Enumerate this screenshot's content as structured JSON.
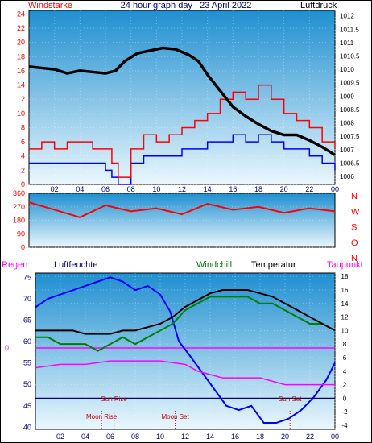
{
  "chart_data": [
    {
      "type": "line",
      "title": "24 hour graph day : 23 April 2022",
      "left_label": "Windstarke",
      "right_label": "Luftdruck",
      "x_ticks": [
        "02",
        "04",
        "06",
        "08",
        "10",
        "12",
        "14",
        "16",
        "18",
        "20",
        "22",
        "00"
      ],
      "x_range_hours": [
        0,
        24
      ],
      "left_axis": {
        "ticks": [
          0,
          2,
          4,
          6,
          8,
          10,
          12,
          14,
          16,
          18,
          20,
          22,
          24
        ],
        "ylim": [
          0,
          24.5
        ],
        "color": "#ff0000"
      },
      "right_axis": {
        "ticks": [
          "1006",
          "1006.5",
          "1007",
          "1007.5",
          "1008",
          "1008.5",
          "1009",
          "1009.5",
          "1010",
          "1010.5",
          "1011",
          "1011.5",
          "1012"
        ],
        "ylim": [
          1005.7,
          1012.2
        ],
        "color": "#000000"
      },
      "series": [
        {
          "color": "#000000",
          "values": [
            [
              0,
              1010.1
            ],
            [
              1,
              1010.05
            ],
            [
              2,
              1010.0
            ],
            [
              3,
              1009.85
            ],
            [
              4,
              1009.95
            ],
            [
              5,
              1009.9
            ],
            [
              6,
              1009.85
            ],
            [
              6.8,
              1009.95
            ],
            [
              7.5,
              1010.3
            ],
            [
              8.5,
              1010.6
            ],
            [
              9.5,
              1010.7
            ],
            [
              10.5,
              1010.8
            ],
            [
              11.5,
              1010.75
            ],
            [
              12.5,
              1010.55
            ],
            [
              13.3,
              1010.3
            ],
            [
              14,
              1009.8
            ],
            [
              15,
              1009.2
            ],
            [
              16,
              1008.6
            ],
            [
              17,
              1008.25
            ],
            [
              18,
              1007.95
            ],
            [
              19,
              1007.7
            ],
            [
              20,
              1007.55
            ],
            [
              21,
              1007.55
            ],
            [
              22,
              1007.35
            ],
            [
              23,
              1007.1
            ],
            [
              24,
              1006.8
            ]
          ]
        },
        {
          "color": "#ff0000",
          "values": [
            [
              0,
              5
            ],
            [
              1,
              6
            ],
            [
              2,
              5
            ],
            [
              3,
              6
            ],
            [
              4,
              6
            ],
            [
              5,
              5
            ],
            [
              6,
              5
            ],
            [
              6.5,
              3
            ],
            [
              7,
              1
            ],
            [
              7.6,
              1
            ],
            [
              8,
              5
            ],
            [
              9,
              7
            ],
            [
              10,
              6
            ],
            [
              11,
              7
            ],
            [
              12,
              8
            ],
            [
              13,
              9
            ],
            [
              14,
              10
            ],
            [
              15,
              12
            ],
            [
              16,
              13
            ],
            [
              17,
              12
            ],
            [
              18,
              14
            ],
            [
              19,
              12
            ],
            [
              20,
              10
            ],
            [
              21,
              9
            ],
            [
              22,
              8
            ],
            [
              23,
              6
            ],
            [
              24,
              5
            ]
          ]
        },
        {
          "color": "#0000ff",
          "values": [
            [
              0,
              3
            ],
            [
              1,
              3
            ],
            [
              2,
              3
            ],
            [
              3,
              3
            ],
            [
              4,
              3
            ],
            [
              5,
              3
            ],
            [
              6,
              2
            ],
            [
              6.5,
              1
            ],
            [
              7,
              0
            ],
            [
              7.6,
              0
            ],
            [
              8,
              3
            ],
            [
              9,
              4
            ],
            [
              10,
              4
            ],
            [
              11,
              4
            ],
            [
              12,
              5
            ],
            [
              13,
              5
            ],
            [
              14,
              6
            ],
            [
              15,
              6
            ],
            [
              16,
              7
            ],
            [
              17,
              6
            ],
            [
              18,
              7
            ],
            [
              19,
              6
            ],
            [
              20,
              5
            ],
            [
              21,
              5
            ],
            [
              22,
              4
            ],
            [
              23,
              3
            ],
            [
              24,
              2
            ]
          ]
        }
      ]
    },
    {
      "type": "scatter",
      "left_axis": {
        "ticks": [
          0,
          90,
          180,
          270,
          360
        ],
        "ylim": [
          0,
          360
        ],
        "color": "#ff0000"
      },
      "right_labels": [
        "N",
        "W",
        "S",
        "O",
        "N"
      ],
      "x_range_hours": [
        0,
        24
      ],
      "series": [
        {
          "color": "#ff0000",
          "values": [
            [
              0,
              300
            ],
            [
              2,
              250
            ],
            [
              4,
              200
            ],
            [
              6,
              280
            ],
            [
              8,
              240
            ],
            [
              10,
              260
            ],
            [
              12,
              220
            ],
            [
              14,
              290
            ],
            [
              16,
              250
            ],
            [
              18,
              270
            ],
            [
              20,
              230
            ],
            [
              22,
              260
            ],
            [
              24,
              240
            ]
          ]
        }
      ]
    },
    {
      "type": "line",
      "legend": [
        "Regen",
        "Luftfeuchte",
        "Windchill",
        "Temperatur",
        "Taupunkt"
      ],
      "legend_colors": [
        "#ff00ff",
        "#000080",
        "#008000",
        "#000000",
        "#ff00ff"
      ],
      "x_ticks": [
        "02",
        "04",
        "06",
        "08",
        "10",
        "12",
        "14",
        "16",
        "18",
        "20",
        "22",
        "00"
      ],
      "x_range_hours": [
        0,
        24
      ],
      "left_axis": {
        "ticks": [
          40,
          45,
          50,
          55,
          60,
          65,
          70,
          75
        ],
        "ylim": [
          39.5,
          76
        ],
        "color": "#000080"
      },
      "right_axis": {
        "ticks": [
          -4,
          -2,
          0,
          2,
          4,
          6,
          8,
          10,
          12,
          14,
          16,
          18
        ],
        "ylim": [
          -4.6,
          18.5
        ],
        "color": "#000000"
      },
      "rain_label": "0",
      "annotations": {
        "sun_rise": "Sun Rise",
        "sun_set": "Sun Set",
        "moon_rise": "Moon Rise",
        "moon_set": "Moon Set"
      },
      "annotation_hours": {
        "sun_rise": 6.3,
        "sun_set": 20.4,
        "moon_rise": 5.3,
        "moon_set": 11.2
      },
      "series": [
        {
          "name": "Luftfeuchte",
          "color": "#0000ff",
          "values": [
            [
              0,
              68
            ],
            [
              1,
              70
            ],
            [
              2,
              71
            ],
            [
              3,
              72
            ],
            [
              4,
              73
            ],
            [
              5,
              74
            ],
            [
              6,
              75
            ],
            [
              7,
              74
            ],
            [
              8,
              72
            ],
            [
              9,
              73
            ],
            [
              10,
              71
            ],
            [
              10.8,
              67
            ],
            [
              11.5,
              60
            ],
            [
              12.3,
              57
            ],
            [
              13.3,
              53
            ],
            [
              14.3,
              49
            ],
            [
              15.3,
              45
            ],
            [
              16.3,
              44
            ],
            [
              17.3,
              45
            ],
            [
              18.3,
              41
            ],
            [
              19.3,
              41
            ],
            [
              20.3,
              42
            ],
            [
              21.3,
              44
            ],
            [
              22.3,
              47
            ],
            [
              23.3,
              51
            ],
            [
              24,
              55
            ]
          ]
        },
        {
          "name": "Windchill",
          "color": "#008000",
          "values": [
            [
              0,
              9
            ],
            [
              1,
              9
            ],
            [
              2,
              8
            ],
            [
              3,
              8
            ],
            [
              4,
              8
            ],
            [
              5,
              7
            ],
            [
              6,
              8
            ],
            [
              7,
              9
            ],
            [
              8,
              8
            ],
            [
              9,
              9
            ],
            [
              10,
              10
            ],
            [
              11,
              11
            ],
            [
              12,
              13
            ],
            [
              13,
              14
            ],
            [
              14,
              15
            ],
            [
              15,
              15
            ],
            [
              16,
              15
            ],
            [
              17,
              15
            ],
            [
              18,
              14
            ],
            [
              19,
              14
            ],
            [
              20,
              13
            ],
            [
              21,
              12
            ],
            [
              22,
              11
            ],
            [
              23,
              11
            ],
            [
              24,
              10
            ]
          ]
        },
        {
          "name": "Temperatur",
          "color": "#000000",
          "values": [
            [
              0,
              10
            ],
            [
              1,
              10
            ],
            [
              2,
              10
            ],
            [
              3,
              10
            ],
            [
              4,
              9.5
            ],
            [
              5,
              9.5
            ],
            [
              6,
              9.5
            ],
            [
              7,
              10
            ],
            [
              8,
              10
            ],
            [
              9,
              10.5
            ],
            [
              10,
              11
            ],
            [
              11,
              12
            ],
            [
              12,
              13.5
            ],
            [
              13,
              14.5
            ],
            [
              14,
              15.5
            ],
            [
              15,
              16
            ],
            [
              16,
              16
            ],
            [
              17,
              16
            ],
            [
              18,
              15.5
            ],
            [
              19,
              15
            ],
            [
              20,
              14
            ],
            [
              21,
              13
            ],
            [
              22,
              12
            ],
            [
              23,
              11
            ],
            [
              24,
              10
            ]
          ]
        },
        {
          "name": "Taupunkt",
          "color": "#ff00ff",
          "values": [
            [
              0,
              4.5
            ],
            [
              2,
              5
            ],
            [
              4,
              5
            ],
            [
              6,
              5.5
            ],
            [
              8,
              5.5
            ],
            [
              10,
              5.5
            ],
            [
              12,
              5
            ],
            [
              13,
              4
            ],
            [
              14,
              3.5
            ],
            [
              15,
              3
            ],
            [
              16,
              3
            ],
            [
              17,
              3
            ],
            [
              18,
              3
            ],
            [
              19,
              2.5
            ],
            [
              20,
              2
            ],
            [
              21,
              2
            ],
            [
              22,
              2
            ],
            [
              23,
              2
            ],
            [
              24,
              2
            ]
          ]
        },
        {
          "name": "Regen",
          "color": "#ff00ff",
          "values": [
            [
              0,
              0
            ],
            [
              24,
              0
            ]
          ]
        }
      ]
    }
  ],
  "colors": {
    "plot_top": "#1f8fd0",
    "plot_bottom": "#e8f6fc",
    "frame": "#000000"
  }
}
